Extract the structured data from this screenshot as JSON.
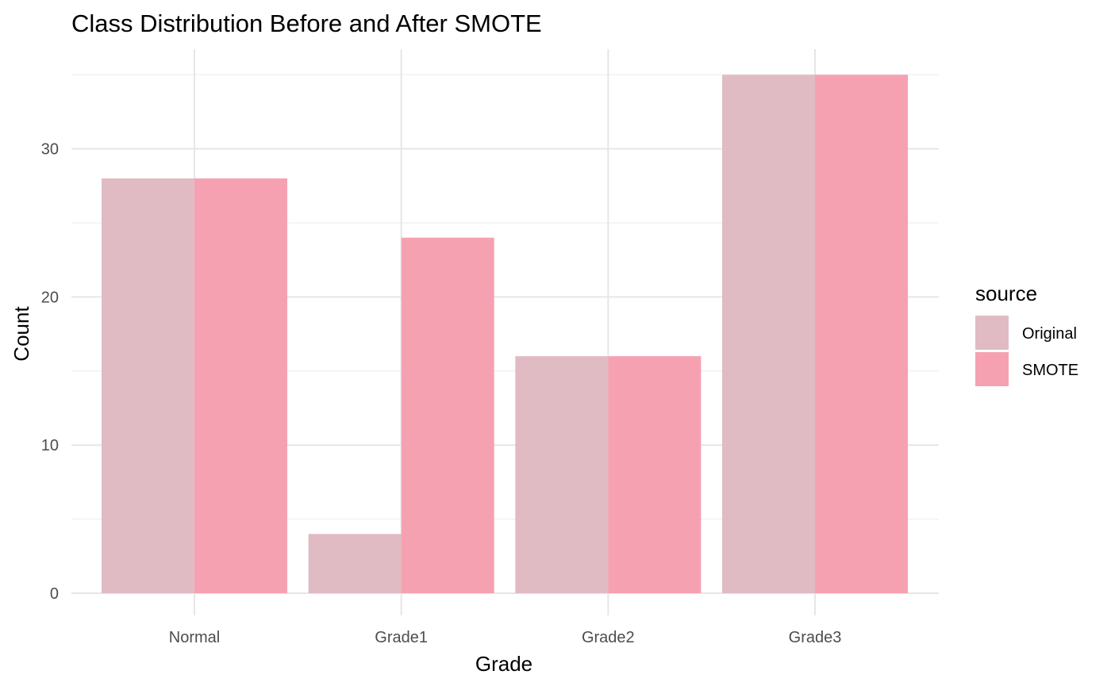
{
  "chart_data": {
    "type": "bar",
    "title": "Class Distribution Before and After SMOTE",
    "xlabel": "Grade",
    "ylabel": "Count",
    "categories": [
      "Normal",
      "Grade1",
      "Grade2",
      "Grade3"
    ],
    "series": [
      {
        "name": "Original",
        "values": [
          28,
          4,
          16,
          35
        ],
        "color": "#E0BBC3"
      },
      {
        "name": "SMOTE",
        "values": [
          28,
          24,
          16,
          35
        ],
        "color": "#F6A1B1"
      }
    ],
    "y_ticks": [
      "0",
      "10",
      "20",
      "30"
    ],
    "ylim": [
      0,
      35
    ],
    "grid": true,
    "legend": {
      "title": "source",
      "position": "right",
      "items": [
        "Original",
        "SMOTE"
      ]
    }
  }
}
